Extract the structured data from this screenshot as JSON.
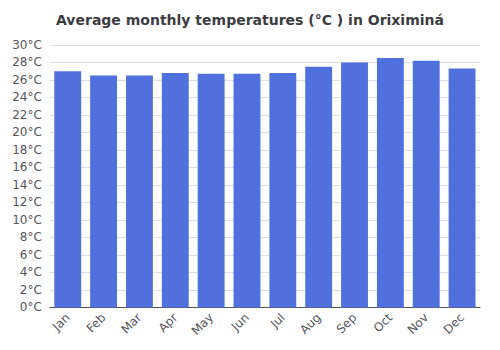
{
  "chart_data": {
    "type": "bar",
    "title": "Average monthly temperatures (°C ) in Oriximiná",
    "categories": [
      "Jan",
      "Feb",
      "Mar",
      "Apr",
      "May",
      "Jun",
      "Jul",
      "Aug",
      "Sep",
      "Oct",
      "Nov",
      "Dec"
    ],
    "values": [
      27.0,
      26.5,
      26.5,
      26.8,
      26.7,
      26.7,
      26.8,
      27.5,
      28.0,
      28.5,
      28.2,
      27.3
    ],
    "ylim": [
      0,
      30
    ],
    "yticks": [
      {
        "value": 0,
        "label": "0°C"
      },
      {
        "value": 2,
        "label": "2°C"
      },
      {
        "value": 4,
        "label": "4°C"
      },
      {
        "value": 6,
        "label": "6°C"
      },
      {
        "value": 8,
        "label": "8°C"
      },
      {
        "value": 10,
        "label": "10°C"
      },
      {
        "value": 12,
        "label": "12°C"
      },
      {
        "value": 14,
        "label": "14°C"
      },
      {
        "value": 16,
        "label": "16°C"
      },
      {
        "value": 18,
        "label": "18°C"
      },
      {
        "value": 20,
        "label": "20°C"
      },
      {
        "value": 22,
        "label": "22°C"
      },
      {
        "value": 24,
        "label": "24°C"
      },
      {
        "value": 26,
        "label": "26°C"
      },
      {
        "value": 28,
        "label": "28°C"
      },
      {
        "value": 30,
        "label": "30°C"
      }
    ],
    "grid": true
  }
}
